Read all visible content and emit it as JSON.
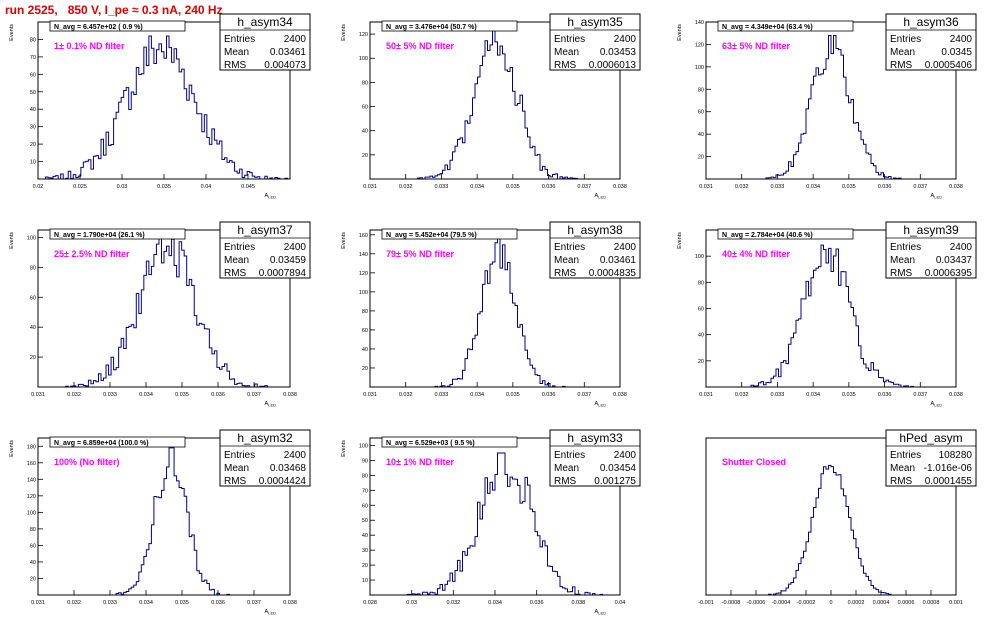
{
  "page_title": "run 2525,   850 V, I_pe ≈ 0.3 nA, 240 Hz",
  "colors": {
    "title": "#e00000",
    "annotation": "#ff00ff",
    "histogram": "#00008b",
    "frame": "#000000"
  },
  "stats_labels": {
    "entries": "Entries",
    "mean": "Mean",
    "rms": "RMS"
  },
  "chart_data": [
    {
      "type": "bar",
      "name": "h_asym34",
      "navg": "N_avg = 6.457e+02 ( 0.9 %)",
      "filter": "1± 0.1% ND filter",
      "ylabel": "Events",
      "xlabel": "A_LED",
      "xlim": [
        0.02,
        0.05
      ],
      "ylim": [
        0,
        90
      ],
      "xticks": [
        "0.02",
        "0.025",
        "0.03",
        "0.035",
        "0.04",
        "0.045"
      ],
      "xtick_values": [
        0.02,
        0.025,
        0.03,
        0.035,
        0.04,
        0.045
      ],
      "yticks": [
        "10",
        "20",
        "30",
        "40",
        "50",
        "60",
        "70",
        "80"
      ],
      "ytick_values": [
        10,
        20,
        30,
        40,
        50,
        60,
        70,
        80
      ],
      "entries": "2400",
      "mean": "0.03461",
      "rms": "0.004073",
      "mean_value": 0.03461,
      "rms_value": 0.004073,
      "peak": 82,
      "nbins": 100
    },
    {
      "type": "bar",
      "name": "h_asym35",
      "navg": "N_avg = 3.476e+04 (50.7 %)",
      "filter": "50± 5% ND filter",
      "ylabel": "Events",
      "xlabel": "A_LED",
      "xlim": [
        0.031,
        0.038
      ],
      "ylim": [
        0,
        130
      ],
      "xticks": [
        "0.031",
        "0.032",
        "0.033",
        "0.034",
        "0.035",
        "0.036",
        "0.037",
        "0.038"
      ],
      "xtick_values": [
        0.031,
        0.032,
        0.033,
        0.034,
        0.035,
        0.036,
        0.037,
        0.038
      ],
      "yticks": [
        "20",
        "40",
        "60",
        "80",
        "100",
        "120"
      ],
      "ytick_values": [
        20,
        40,
        60,
        80,
        100,
        120
      ],
      "entries": "2400",
      "mean": "0.03453",
      "rms": "0.0006013",
      "mean_value": 0.03453,
      "rms_value": 0.0006013,
      "peak": 124,
      "nbins": 100
    },
    {
      "type": "bar",
      "name": "h_asym36",
      "navg": "N_avg = 4.349e+04 (63.4 %)",
      "filter": "63± 5% ND filter",
      "ylabel": "Events",
      "xlabel": "A_LED",
      "xlim": [
        0.031,
        0.038
      ],
      "ylim": [
        0,
        140
      ],
      "xticks": [
        "0.031",
        "0.032",
        "0.033",
        "0.034",
        "0.035",
        "0.036",
        "0.037",
        "0.038"
      ],
      "xtick_values": [
        0.031,
        0.032,
        0.033,
        0.034,
        0.035,
        0.036,
        0.037,
        0.038
      ],
      "yticks": [
        "20",
        "40",
        "60",
        "80",
        "100",
        "120",
        "140"
      ],
      "ytick_values": [
        20,
        40,
        60,
        80,
        100,
        120,
        140
      ],
      "entries": "2400",
      "mean": "0.0345",
      "rms": "0.0005406",
      "mean_value": 0.0345,
      "rms_value": 0.0005406,
      "peak": 128,
      "nbins": 100
    },
    {
      "type": "bar",
      "name": "h_asym37",
      "navg": "N_avg = 1.790e+04 (26.1 %)",
      "filter": "25± 2.5% ND filter",
      "ylabel": "Events",
      "xlabel": "A_LED",
      "xlim": [
        0.031,
        0.038
      ],
      "ylim": [
        0,
        105
      ],
      "xticks": [
        "0.031",
        "0.032",
        "0.033",
        "0.034",
        "0.035",
        "0.036",
        "0.037",
        "0.038"
      ],
      "xtick_values": [
        0.031,
        0.032,
        0.033,
        0.034,
        0.035,
        0.036,
        0.037,
        0.038
      ],
      "yticks": [
        "20",
        "40",
        "60",
        "80",
        "100"
      ],
      "ytick_values": [
        20,
        40,
        60,
        80,
        100
      ],
      "entries": "2400",
      "mean": "0.03459",
      "rms": "0.0007894",
      "mean_value": 0.03459,
      "rms_value": 0.0007894,
      "peak": 101,
      "nbins": 100
    },
    {
      "type": "bar",
      "name": "h_asym38",
      "navg": "N_avg = 5.452e+04 (79.5 %)",
      "filter": "79± 5% ND filter",
      "ylabel": "Events",
      "xlabel": "A_LED",
      "xlim": [
        0.031,
        0.038
      ],
      "ylim": [
        0,
        165
      ],
      "xticks": [
        "0.031",
        "0.032",
        "0.033",
        "0.034",
        "0.035",
        "0.036",
        "0.037",
        "0.038"
      ],
      "xtick_values": [
        0.031,
        0.032,
        0.033,
        0.034,
        0.035,
        0.036,
        0.037,
        0.038
      ],
      "yticks": [
        "20",
        "40",
        "60",
        "80",
        "100",
        "120",
        "140",
        "160"
      ],
      "ytick_values": [
        20,
        40,
        60,
        80,
        100,
        120,
        140,
        160
      ],
      "entries": "2400",
      "mean": "0.03461",
      "rms": "0.0004835",
      "mean_value": 0.03461,
      "rms_value": 0.0004835,
      "peak": 158,
      "nbins": 100
    },
    {
      "type": "bar",
      "name": "h_asym39",
      "navg": "N_avg = 2.784e+04 (40.6 %)",
      "filter": "40± 4% ND filter",
      "ylabel": "Events",
      "xlabel": "A_LED",
      "xlim": [
        0.031,
        0.038
      ],
      "ylim": [
        0,
        120
      ],
      "xticks": [
        "0.031",
        "0.032",
        "0.033",
        "0.034",
        "0.035",
        "0.036",
        "0.037",
        "0.038"
      ],
      "xtick_values": [
        0.031,
        0.032,
        0.033,
        0.034,
        0.035,
        0.036,
        0.037,
        0.038
      ],
      "yticks": [
        "20",
        "40",
        "60",
        "80",
        "100"
      ],
      "ytick_values": [
        20,
        40,
        60,
        80,
        100
      ],
      "entries": "2400",
      "mean": "0.03437",
      "rms": "0.0006395",
      "mean_value": 0.03437,
      "rms_value": 0.0006395,
      "peak": 112,
      "nbins": 100
    },
    {
      "type": "bar",
      "name": "h_asym32",
      "navg": "N_avg = 6.859e+04 (100.0 %)",
      "filter": "100% (No filter)",
      "ylabel": "Events",
      "xlabel": "A_LED",
      "xlim": [
        0.031,
        0.038
      ],
      "ylim": [
        0,
        190
      ],
      "xticks": [
        "0.031",
        "0.032",
        "0.033",
        "0.034",
        "0.035",
        "0.036",
        "0.037",
        "0.038"
      ],
      "xtick_values": [
        0.031,
        0.032,
        0.033,
        0.034,
        0.035,
        0.036,
        0.037,
        0.038
      ],
      "yticks": [
        "20",
        "40",
        "60",
        "80",
        "100",
        "120",
        "140",
        "160",
        "180"
      ],
      "ytick_values": [
        20,
        40,
        60,
        80,
        100,
        120,
        140,
        160,
        180
      ],
      "entries": "2400",
      "mean": "0.03468",
      "rms": "0.0004424",
      "mean_value": 0.03468,
      "rms_value": 0.0004424,
      "peak": 178,
      "nbins": 100
    },
    {
      "type": "bar",
      "name": "h_asym33",
      "navg": "N_avg = 6.529e+03 ( 9.5 %)",
      "filter": "10± 1% ND filter",
      "ylabel": "Events",
      "xlabel": "A_LED",
      "xlim": [
        0.028,
        0.04
      ],
      "ylim": [
        0,
        105
      ],
      "xticks": [
        "0.028",
        "0.03",
        "0.032",
        "0.034",
        "0.036",
        "0.038",
        "0.04"
      ],
      "xtick_values": [
        0.028,
        0.03,
        0.032,
        0.034,
        0.036,
        0.038,
        0.04
      ],
      "yticks": [
        "10",
        "20",
        "30",
        "40",
        "50",
        "60",
        "70",
        "80",
        "90",
        "100"
      ],
      "ytick_values": [
        10,
        20,
        30,
        40,
        50,
        60,
        70,
        80,
        90,
        100
      ],
      "entries": "2400",
      "mean": "0.03454",
      "rms": "0.001275",
      "mean_value": 0.03454,
      "rms_value": 0.001275,
      "peak": 95,
      "nbins": 100
    },
    {
      "type": "bar",
      "name": "hPed_asym",
      "navg": "",
      "filter": "Shutter Closed",
      "ylabel": "",
      "xlabel": "",
      "xlim": [
        -0.001,
        0.001
      ],
      "ylim": [
        0,
        6300
      ],
      "xticks": [
        "-0.001",
        "-0.0008",
        "-0.0006",
        "-0.0004",
        "-0.0002",
        "0",
        "0.0002",
        "0.0004",
        "0.0006",
        "0.0008",
        "0.001"
      ],
      "xtick_values": [
        -0.001,
        -0.0008,
        -0.0006,
        -0.0004,
        -0.0002,
        0,
        0.0002,
        0.0004,
        0.0006,
        0.0008,
        0.001
      ],
      "yticks": [],
      "ytick_values": [],
      "entries": "108280",
      "mean": "-1.016e-06",
      "rms": "0.0001455",
      "mean_value": -1e-06,
      "rms_value": 0.0001455,
      "peak": 5700,
      "nbins": 100
    }
  ]
}
